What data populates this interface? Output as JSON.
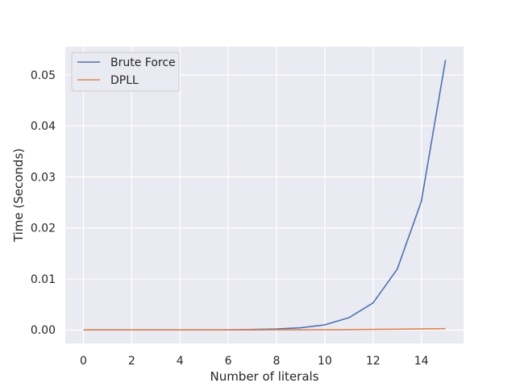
{
  "chart_data": {
    "type": "line",
    "title": "",
    "xlabel": "Number of literals",
    "ylabel": "Time (Seconds)",
    "xlim": [
      -0.75,
      15.75
    ],
    "ylim": [
      -0.00265,
      0.0555
    ],
    "x_ticks": [
      0,
      2,
      4,
      6,
      8,
      10,
      12,
      14
    ],
    "x_tick_labels": [
      "0",
      "2",
      "4",
      "6",
      "8",
      "10",
      "12",
      "14"
    ],
    "y_ticks": [
      0.0,
      0.01,
      0.02,
      0.03,
      0.04,
      0.05
    ],
    "y_tick_labels": [
      "0.00",
      "0.01",
      "0.02",
      "0.03",
      "0.04",
      "0.05"
    ],
    "grid": true,
    "legend": "top-left",
    "x": [
      0,
      1,
      2,
      3,
      4,
      5,
      6,
      7,
      8,
      9,
      10,
      11,
      12,
      13,
      14,
      15
    ],
    "series": [
      {
        "name": "Brute Force",
        "color": "#4c72b0",
        "values": [
          0.0,
          0.0,
          0.0,
          0.0,
          0.0,
          1e-05,
          3e-05,
          8e-05,
          0.00018,
          0.00042,
          0.001,
          0.0024,
          0.0053,
          0.0119,
          0.0252,
          0.0529
        ]
      },
      {
        "name": "DPLL",
        "color": "#dd8452",
        "values": [
          0.0,
          0.0,
          0.0,
          0.0,
          0.0,
          0.0,
          0.0,
          1e-05,
          2e-05,
          3e-05,
          5e-05,
          7e-05,
          0.0001,
          0.00014,
          0.0002,
          0.00025
        ]
      }
    ]
  }
}
